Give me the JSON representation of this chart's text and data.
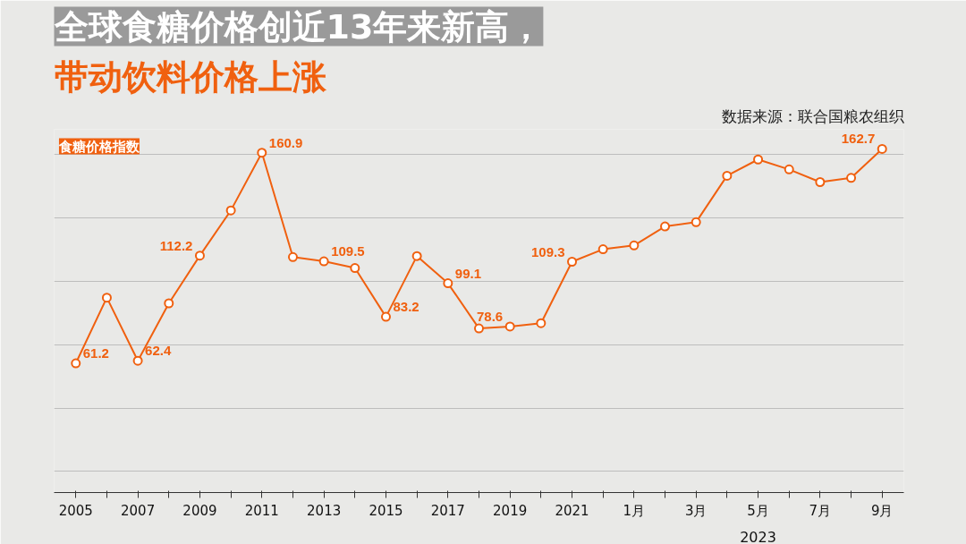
{
  "chart_data": {
    "type": "line",
    "title": "全球食糖价格创近13年来新高，",
    "subtitle": "带动饮料价格上涨",
    "ylabel": "食糖价格指数",
    "annotations": [
      "数据来源：联合国粮农组织",
      "2023"
    ],
    "categories": [
      "2005",
      null,
      "2007",
      null,
      "2009",
      null,
      "2011",
      null,
      "2013",
      null,
      "2015",
      null,
      "2017",
      null,
      "2019",
      null,
      "2021",
      null,
      "1月",
      null,
      "3月",
      null,
      "5月",
      null,
      "7月",
      null,
      "9月"
    ],
    "series": [
      {
        "color": "#f0600f",
        "values": [
          61.2,
          92.3,
          62.4,
          89.6,
          112.2,
          133.6,
          160.9,
          111.5,
          109.5,
          106.3,
          83.2,
          112.0,
          99.1,
          77.7,
          78.6,
          80.2,
          109.3,
          115.2,
          117.0,
          126.0,
          128.0,
          150.0,
          157.7,
          153.0,
          147.0,
          149.0,
          162.7
        ],
        "value_labels": [
          "61.2",
          null,
          "62.4",
          null,
          "112.2",
          null,
          "160.9",
          null,
          "109.5",
          null,
          "83.2",
          null,
          "99.1",
          null,
          "78.6",
          null,
          "109.3",
          null,
          null,
          null,
          null,
          null,
          null,
          null,
          null,
          null,
          "162.7"
        ]
      }
    ],
    "ylim": [
      0,
      172
    ],
    "yticks": [
      {
        "value": 10,
        "label": null
      },
      {
        "value": 40,
        "label": null
      },
      {
        "value": 70,
        "label": null
      },
      {
        "value": 100,
        "label": null
      },
      {
        "value": 130,
        "label": null
      },
      {
        "value": 160,
        "label": null
      }
    ],
    "grid": "y",
    "marker": "circle",
    "line_style": "solid"
  }
}
